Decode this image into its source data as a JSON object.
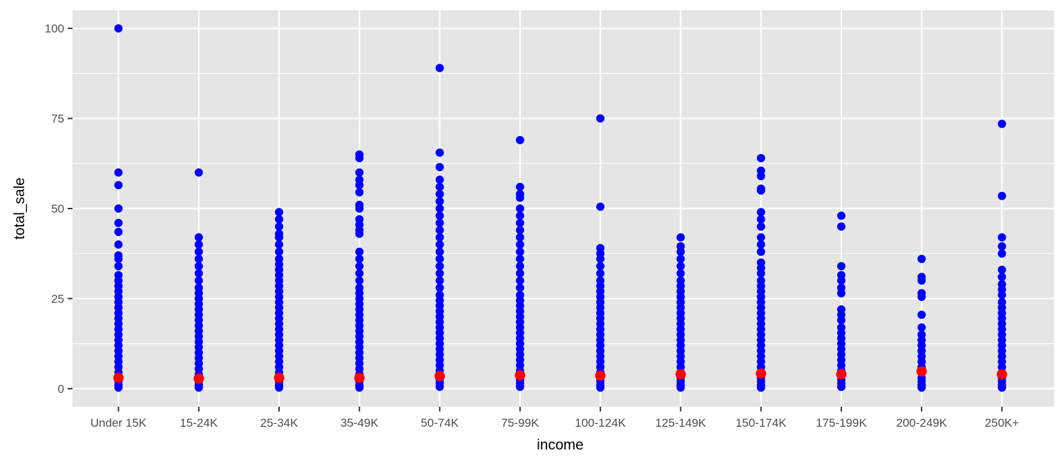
{
  "chart_data": {
    "type": "scatter",
    "title": "",
    "xlabel": "income",
    "ylabel": "total_sale",
    "categories": [
      "Under 15K",
      "15-24K",
      "25-34K",
      "35-49K",
      "50-74K",
      "75-99K",
      "100-124K",
      "125-149K",
      "150-174K",
      "175-199K",
      "200-249K",
      "250K+"
    ],
    "ylim": [
      -5,
      105
    ],
    "yticks": [
      0,
      25,
      50,
      75,
      100
    ],
    "grid": true,
    "legend": "none",
    "colors": {
      "panel": "#e5e5e5",
      "grid": "#ffffff",
      "points": "#0000ff",
      "mean": "#ff0000"
    },
    "series": [
      {
        "values": [
          [
            100,
            60,
            56.5,
            50,
            46,
            43.5,
            40,
            37,
            36,
            34,
            31.5,
            30,
            28.5,
            27,
            25.5,
            24,
            22.5,
            21,
            19.5,
            18,
            16.5,
            15,
            13.5,
            12,
            10.5,
            9,
            7.5,
            6,
            4.5,
            3,
            2,
            1,
            0.3
          ],
          [
            60,
            42,
            40,
            38,
            36,
            34,
            32,
            30,
            28,
            26.5,
            25,
            23.5,
            22,
            20.5,
            19,
            17.5,
            16,
            14.5,
            13,
            11.5,
            10,
            8.5,
            7,
            5.5,
            4,
            3,
            2,
            1,
            0.3
          ],
          [
            49,
            47,
            45,
            43,
            42,
            40,
            38,
            36,
            34.5,
            33,
            31.5,
            30,
            28.5,
            27,
            25.5,
            24,
            22.5,
            21,
            19.5,
            18,
            16.5,
            15,
            13.5,
            12,
            10.5,
            9,
            7.5,
            6,
            4.5,
            3,
            2,
            1,
            0.3
          ],
          [
            65,
            64,
            60,
            58,
            56.5,
            54.5,
            51,
            50,
            47,
            45.5,
            44,
            43,
            38,
            36,
            34,
            32,
            30,
            28,
            26.5,
            25,
            23.5,
            22,
            20.5,
            19,
            17.5,
            16,
            14.5,
            13,
            11.5,
            10,
            8.5,
            7,
            5.5,
            4,
            3,
            2,
            1,
            0.3
          ],
          [
            89,
            65.5,
            61.5,
            58,
            56,
            54,
            52,
            50,
            48,
            46,
            44,
            42,
            40,
            38,
            36,
            34,
            32,
            30,
            28,
            26,
            24.5,
            23,
            21.5,
            20,
            18.5,
            17,
            15.5,
            14,
            12.5,
            11,
            9.5,
            8,
            6.5,
            5,
            3.5,
            2.5,
            1.5,
            0.5
          ],
          [
            69,
            56,
            54,
            53,
            50,
            48,
            46,
            44,
            42,
            40,
            38,
            36,
            34,
            32,
            30,
            28,
            26,
            24.5,
            23,
            21.5,
            20,
            18.5,
            17,
            15.5,
            14,
            12.5,
            11,
            9.5,
            8,
            6.5,
            5,
            3.5,
            2.5,
            1.5,
            0.5
          ],
          [
            75,
            50.5,
            39,
            37.5,
            36,
            34,
            32,
            30,
            28.5,
            27,
            25.5,
            24,
            22.5,
            21,
            19.5,
            18,
            16.5,
            15,
            13.5,
            12,
            10.5,
            9,
            7.5,
            6,
            4.5,
            3,
            2,
            1,
            0.3
          ],
          [
            42,
            39.5,
            38,
            36,
            34,
            32,
            30,
            28.5,
            27,
            25.5,
            24,
            22.5,
            21,
            19.5,
            18,
            16.5,
            15,
            13.5,
            12,
            10.5,
            9,
            7.5,
            6,
            4.5,
            3,
            2,
            1,
            0.3
          ],
          [
            64,
            60.5,
            59,
            55.5,
            55,
            49,
            47,
            45,
            42,
            40,
            38,
            35,
            33.5,
            32,
            30,
            28.5,
            27,
            25.5,
            24,
            22.5,
            21,
            19.5,
            18,
            16.5,
            15,
            13.5,
            12,
            10.5,
            9,
            7.5,
            6,
            4.5,
            3,
            2,
            1,
            0.3
          ],
          [
            48,
            45,
            34,
            31.5,
            30,
            28,
            26.5,
            22,
            20.5,
            19,
            17,
            15.5,
            14,
            12.5,
            11,
            9.5,
            8,
            6.5,
            5,
            3.5,
            2.5,
            1.5,
            0.5
          ],
          [
            36,
            31,
            30,
            26.5,
            25.5,
            20.5,
            17,
            15,
            13.5,
            12,
            10.5,
            9,
            7.5,
            6,
            4.5,
            3,
            2,
            1,
            0.3
          ],
          [
            73.5,
            53.5,
            42,
            39.5,
            37.5,
            33,
            31,
            29,
            27.5,
            26,
            24,
            22.5,
            21,
            19.5,
            18,
            16.5,
            15,
            13.5,
            12,
            10.5,
            9,
            7.5,
            6,
            4.5,
            3,
            2,
            1,
            0.3
          ]
        ]
      },
      {
        "values": [
          3.0,
          2.8,
          3.0,
          3.0,
          3.5,
          3.7,
          3.6,
          4.0,
          4.2,
          4.0,
          4.8,
          4.0
        ]
      }
    ]
  }
}
